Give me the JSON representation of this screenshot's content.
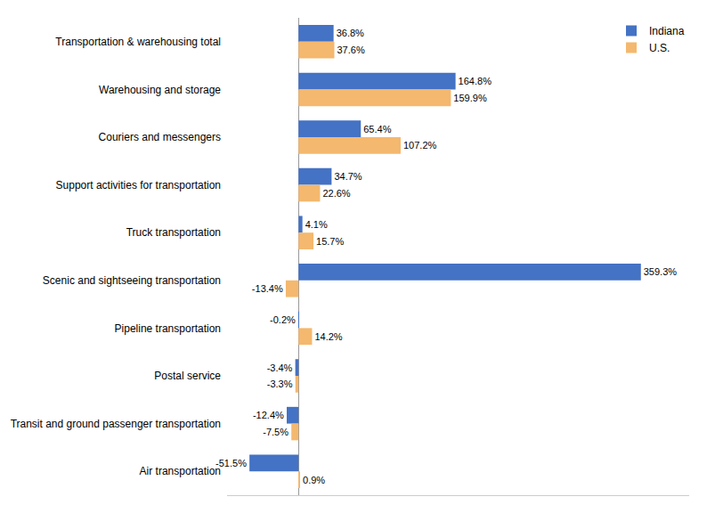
{
  "chart_data": {
    "type": "bar",
    "orientation": "horizontal",
    "categories": [
      "Transportation & warehousing total",
      "Warehousing and storage",
      "Couriers and messengers",
      "Support activities for transportation",
      "Truck transportation",
      "Scenic and sightseeing transportation",
      "Pipeline transportation",
      "Postal service",
      "Transit and ground passenger transportation",
      "Air transportation"
    ],
    "series": [
      {
        "name": "Indiana",
        "color": "#4472C4",
        "values": [
          36.8,
          164.8,
          65.4,
          34.7,
          4.1,
          359.3,
          -0.2,
          -3.4,
          -12.4,
          -51.5
        ],
        "value_labels": [
          "36.8%",
          "164.8%",
          "65.4%",
          "34.7%",
          "4.1%",
          "359.3%",
          "-0.2%",
          "-3.4%",
          "-12.4%",
          "-51.5%"
        ]
      },
      {
        "name": "U.S.",
        "color": "#F4B86E",
        "values": [
          37.6,
          159.9,
          107.2,
          22.6,
          15.7,
          -13.4,
          14.2,
          -3.3,
          -7.5,
          0.9
        ],
        "value_labels": [
          "37.6%",
          "159.9%",
          "107.2%",
          "22.6%",
          "15.7%",
          "-13.4%",
          "14.2%",
          "-3.3%",
          "-7.5%",
          "0.9%"
        ]
      }
    ],
    "xlim": [
      -75,
      410
    ],
    "xticks": [],
    "data_labels": true,
    "tick_labels": "y",
    "grid": false,
    "legend": "upper right"
  }
}
